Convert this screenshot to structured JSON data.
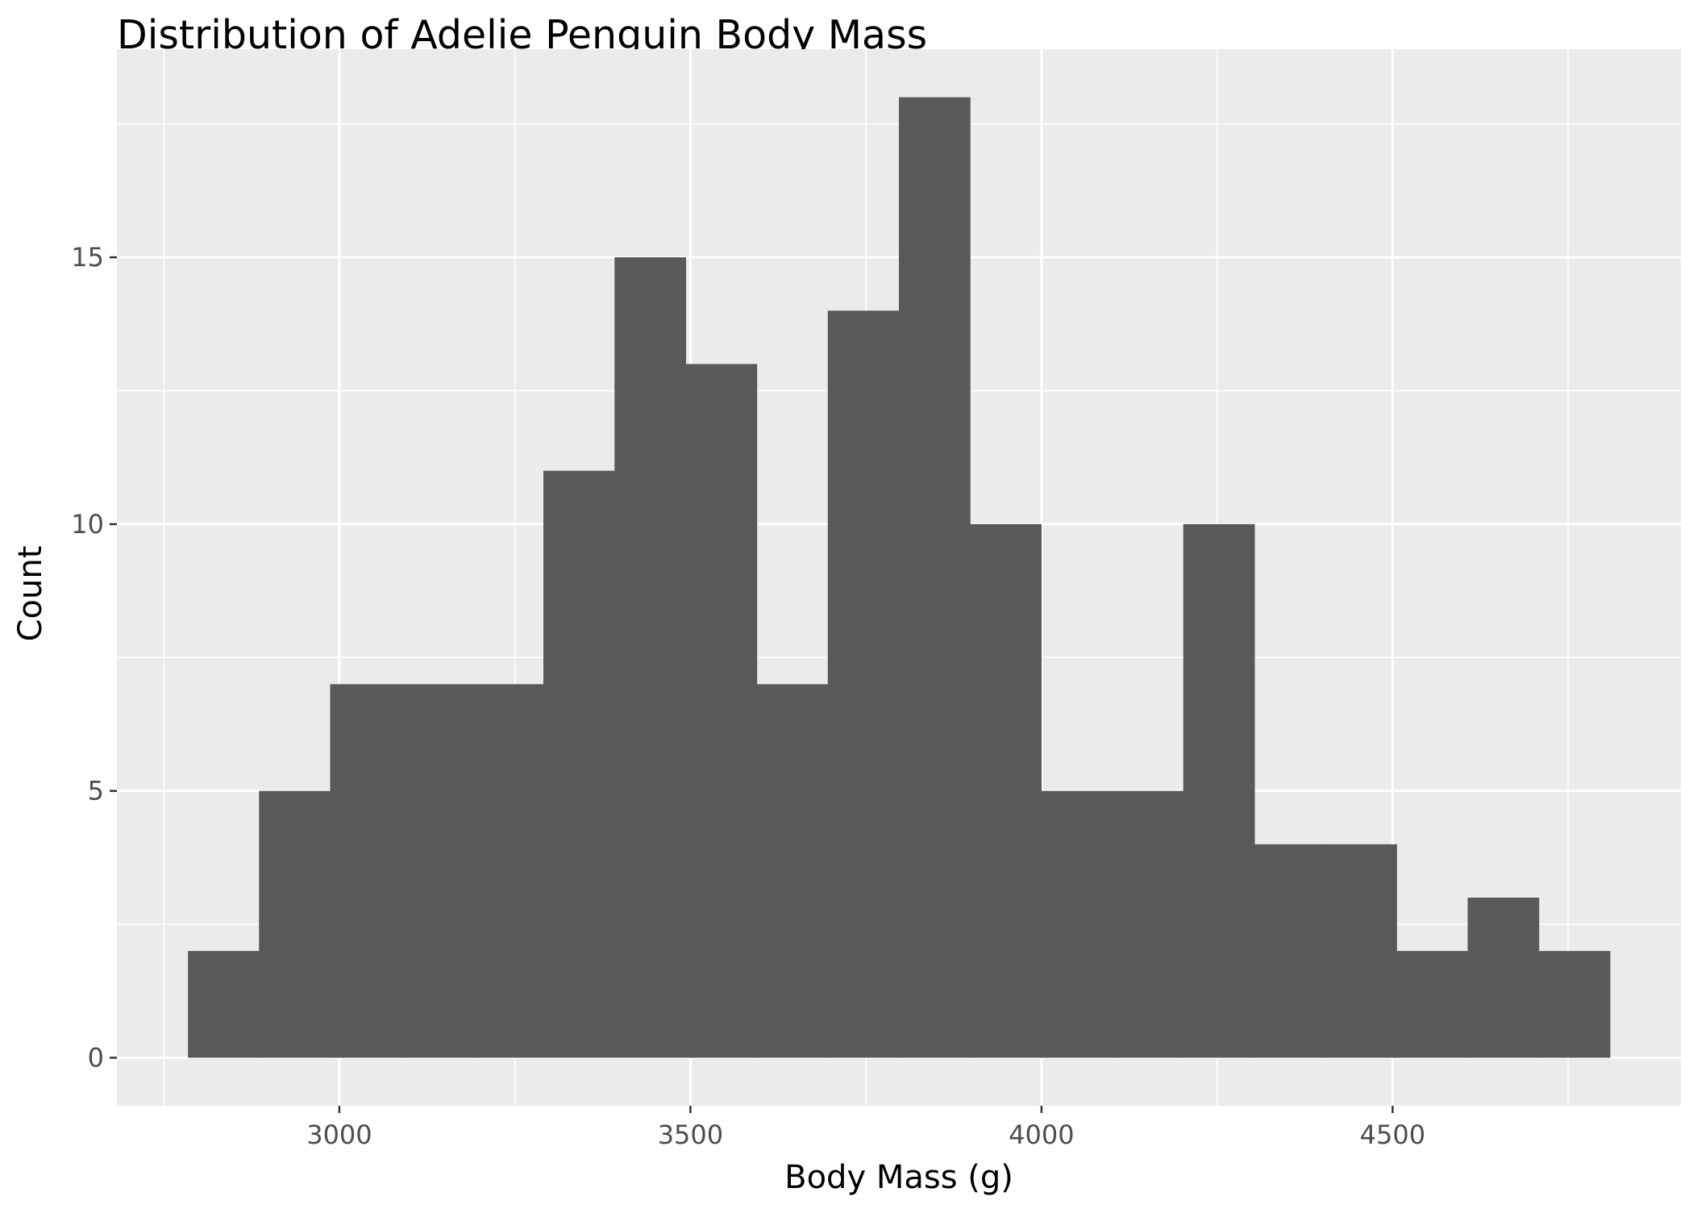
{
  "chart_data": {
    "type": "bar",
    "title": "Distribution of Adelie Penguin Body Mass",
    "xlabel": "Body Mass (g)",
    "ylabel": "Count",
    "bin_width": 101.25,
    "bins": [
      {
        "start": 2784.4,
        "end": 2885.6,
        "count": 2
      },
      {
        "start": 2885.6,
        "end": 2986.9,
        "count": 5
      },
      {
        "start": 2986.9,
        "end": 3088.1,
        "count": 7
      },
      {
        "start": 3088.1,
        "end": 3189.4,
        "count": 7
      },
      {
        "start": 3189.4,
        "end": 3290.6,
        "count": 7
      },
      {
        "start": 3290.6,
        "end": 3391.9,
        "count": 11
      },
      {
        "start": 3391.9,
        "end": 3493.1,
        "count": 15
      },
      {
        "start": 3493.1,
        "end": 3594.4,
        "count": 13
      },
      {
        "start": 3594.4,
        "end": 3695.6,
        "count": 7
      },
      {
        "start": 3695.6,
        "end": 3796.9,
        "count": 14
      },
      {
        "start": 3796.9,
        "end": 3898.1,
        "count": 18
      },
      {
        "start": 3898.1,
        "end": 3999.4,
        "count": 10
      },
      {
        "start": 3999.4,
        "end": 4100.6,
        "count": 5
      },
      {
        "start": 4100.6,
        "end": 4201.9,
        "count": 5
      },
      {
        "start": 4201.9,
        "end": 4303.1,
        "count": 10
      },
      {
        "start": 4303.1,
        "end": 4404.4,
        "count": 4
      },
      {
        "start": 4404.4,
        "end": 4505.6,
        "count": 4
      },
      {
        "start": 4505.6,
        "end": 4606.9,
        "count": 2
      },
      {
        "start": 4606.9,
        "end": 4708.1,
        "count": 3
      },
      {
        "start": 4708.1,
        "end": 4809.4,
        "count": 2
      }
    ],
    "xlim": [
      2683.2,
      4910.6
    ],
    "ylim": [
      -0.9,
      18.9
    ],
    "x_ticks": [
      3000,
      3500,
      4000,
      4500
    ],
    "x_tick_labels": [
      "3000",
      "3500",
      "4000",
      "4500"
    ],
    "x_minor_ticks": [
      2750,
      3250,
      3750,
      4250,
      4750
    ],
    "y_ticks": [
      0,
      5,
      10,
      15
    ],
    "y_tick_labels": [
      "0",
      "5",
      "10",
      "15"
    ],
    "y_minor_ticks": [
      2.5,
      7.5,
      12.5,
      17.5
    ],
    "grid": true,
    "colors": {
      "bar_fill": "#595959",
      "panel_background": "#EBEBEB",
      "grid_line": "#FFFFFF",
      "tick_label": "#4D4D4D",
      "axis_tick": "#333333",
      "text": "#000000"
    }
  }
}
